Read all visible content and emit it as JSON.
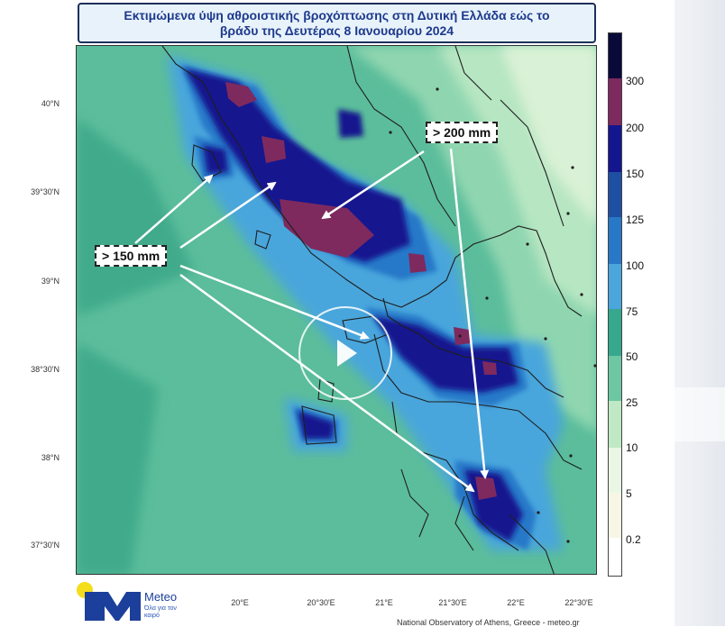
{
  "title": {
    "line1": "Εκτιμώμενα ύψη αθροιστικής βροχόπτωσης στη Δυτική Ελλάδα εώς το",
    "line2": "βράδυ της Δευτέρας 8 Ιανουαρίου 2024"
  },
  "latitude_labels": [
    "40°N",
    "39°30'N",
    "39°N",
    "38°30'N",
    "38°N",
    "37°30'N"
  ],
  "longitude_labels": [
    "20°E",
    "20°30'E",
    "21°E",
    "21°30'E",
    "22°E",
    "22°30'E"
  ],
  "colorbar": {
    "unit": "mm",
    "levels": [
      "300",
      "200",
      "150",
      "125",
      "100",
      "75",
      "50",
      "25",
      "10",
      "5",
      "0.2"
    ],
    "colors": [
      "#0a0a3a",
      "#7e2a5e",
      "#14168f",
      "#1e4fa3",
      "#2878c8",
      "#4aa6dc",
      "#35a88e",
      "#6cc7a2",
      "#bfe8c4",
      "#e9f7e4",
      "#f7f6e6",
      "#ffffff"
    ]
  },
  "annotations": {
    "callout_200": "> 200 mm",
    "callout_150": "> 150 mm"
  },
  "video_overlay": {
    "icon": "play-icon"
  },
  "logo": {
    "brand": "Meteo",
    "tagline": "Όλα για τον καιρό",
    "icon": "meteo-logo"
  },
  "credit": "National Observatory of Athens, Greece - meteo.gr"
}
